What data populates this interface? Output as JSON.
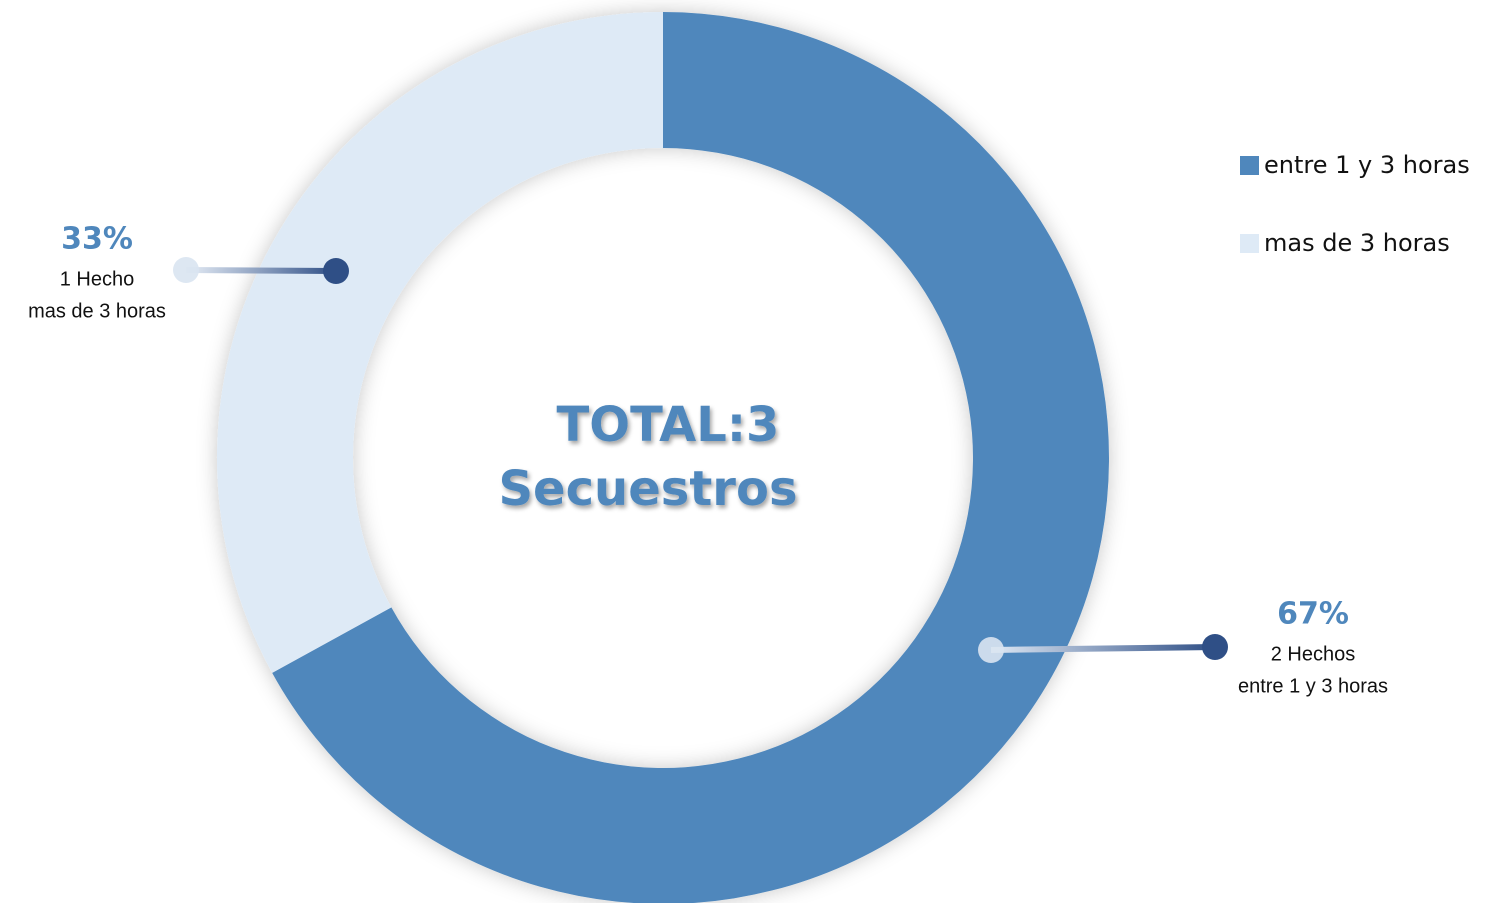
{
  "chart_data": {
    "type": "pie",
    "donut": true,
    "categories": [
      "entre 1 y 3 horas",
      "mas de 3 horas"
    ],
    "values": [
      67,
      33
    ],
    "value_labels": [
      "67%",
      "33%"
    ],
    "colors": [
      "#4f87bc",
      "#deeaf6"
    ],
    "slice_notes": [
      "2 Hechos",
      "1 Hecho"
    ],
    "center_text": [
      "TOTAL:3",
      "Secuestros"
    ],
    "legend": "right"
  }
}
